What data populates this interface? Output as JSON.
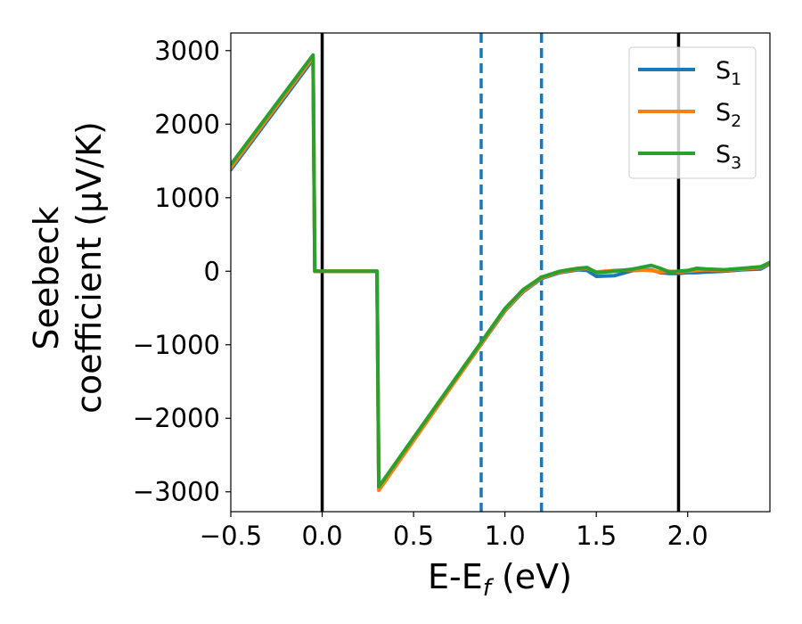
{
  "chart_data": {
    "type": "line",
    "xlabel": "E-E",
    "xlabel_sub": "f",
    "xlabel_unit": " (eV)",
    "ylabel_line1": "Seebeck",
    "ylabel_line2": "coefficient  (μV/K)",
    "xlim": [
      -0.5,
      2.45
    ],
    "ylim": [
      -3270,
      3240
    ],
    "xticks": [
      -0.5,
      0.0,
      0.5,
      1.0,
      1.5,
      2.0
    ],
    "xtick_labels": [
      "−0.5",
      "0.0",
      "0.5",
      "1.0",
      "1.5",
      "2.0"
    ],
    "yticks": [
      3000,
      2000,
      1000,
      0,
      -1000,
      -2000,
      -3000
    ],
    "ytick_labels": [
      "3000",
      "2000",
      "1000",
      "0",
      "−1000",
      "−2000",
      "−3000"
    ],
    "grid": false,
    "legend_position": "top-right",
    "vertical_lines": [
      {
        "x": 0.0,
        "style": "solid",
        "color": "#000000"
      },
      {
        "x": 1.95,
        "style": "solid",
        "color": "#000000"
      },
      {
        "x": 0.87,
        "style": "dashed",
        "color": "#1f77b4"
      },
      {
        "x": 1.2,
        "style": "dashed",
        "color": "#1f77b4"
      }
    ],
    "series": [
      {
        "name": "S",
        "sub": "1",
        "color": "#1f77b4",
        "x": [
          -0.5,
          -0.05,
          -0.04,
          0.3,
          0.31,
          1.0,
          1.1,
          1.2,
          1.3,
          1.4,
          1.45,
          1.5,
          1.6,
          1.7,
          1.8,
          1.85,
          1.9,
          1.95,
          2.0,
          2.05,
          2.1,
          2.2,
          2.3,
          2.4,
          2.45
        ],
        "y": [
          1380,
          2880,
          0,
          0,
          -2960,
          -540,
          -280,
          -100,
          -20,
          20,
          10,
          -70,
          -60,
          10,
          20,
          -20,
          -30,
          -30,
          -20,
          -20,
          -10,
          0,
          20,
          30,
          100
        ]
      },
      {
        "name": "S",
        "sub": "2",
        "color": "#ff7f0e",
        "x": [
          -0.5,
          -0.05,
          -0.04,
          0.3,
          0.31,
          1.0,
          1.1,
          1.2,
          1.3,
          1.4,
          1.45,
          1.5,
          1.6,
          1.7,
          1.8,
          1.85,
          1.9,
          1.95,
          2.0,
          2.05,
          2.1,
          2.2,
          2.3,
          2.4,
          2.45
        ],
        "y": [
          1410,
          2910,
          0,
          0,
          -2980,
          -530,
          -270,
          -90,
          -10,
          30,
          40,
          -10,
          10,
          20,
          10,
          -10,
          0,
          -10,
          0,
          10,
          20,
          10,
          30,
          50,
          110
        ]
      },
      {
        "name": "S",
        "sub": "3",
        "color": "#2ca02c",
        "x": [
          -0.5,
          -0.05,
          -0.04,
          0.3,
          0.31,
          1.0,
          1.1,
          1.2,
          1.3,
          1.4,
          1.45,
          1.5,
          1.6,
          1.7,
          1.8,
          1.85,
          1.9,
          1.95,
          2.0,
          2.05,
          2.1,
          2.2,
          2.3,
          2.4,
          2.45
        ],
        "y": [
          1450,
          2940,
          0,
          0,
          -2930,
          -510,
          -250,
          -80,
          0,
          40,
          50,
          -20,
          0,
          30,
          80,
          40,
          -10,
          0,
          10,
          40,
          30,
          20,
          40,
          60,
          120
        ]
      }
    ]
  }
}
